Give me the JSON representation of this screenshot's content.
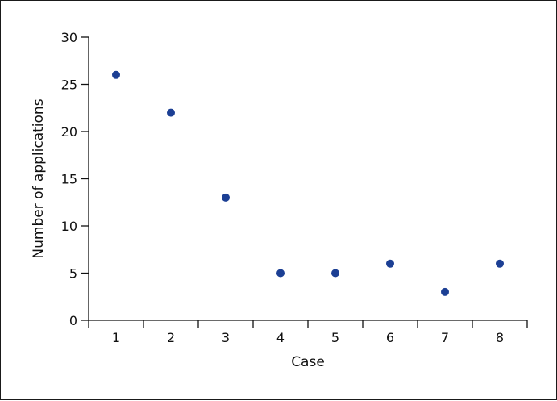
{
  "chart_data": {
    "type": "scatter",
    "title": "",
    "xlabel": "Case",
    "ylabel": "Number of applications",
    "x": [
      1,
      2,
      3,
      4,
      5,
      6,
      7,
      8
    ],
    "y": [
      26,
      22,
      13,
      5,
      5,
      6,
      3,
      6
    ],
    "xticks": [
      "1",
      "2",
      "3",
      "4",
      "5",
      "6",
      "7",
      "8"
    ],
    "yticks": [
      "0",
      "5",
      "10",
      "15",
      "20",
      "25",
      "30"
    ],
    "xlim": [
      0.5,
      8.5
    ],
    "ylim": [
      0,
      30
    ],
    "grid": false,
    "legend": "none",
    "marker_color": "#1c3f94",
    "axis_color": "#111111"
  }
}
